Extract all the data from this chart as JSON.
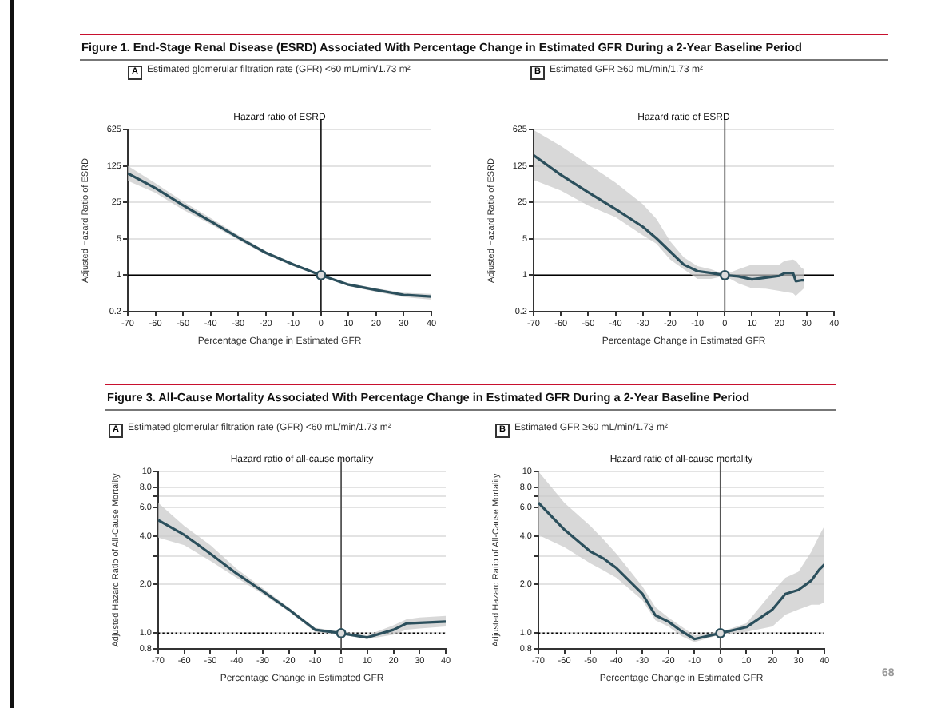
{
  "chart_data": [
    {
      "type": "line",
      "title": "Hazard ratio of ESRD",
      "subtitle": "Estimated glomerular filtration rate (GFR) <60 mL/min/1.73 m²",
      "xlabel": "Percentage Change in Estimated GFR",
      "ylabel": "Adjusted Hazard Ratio of ESRD",
      "annotations": [
        "Figure 1. End-Stage Renal Disease (ESRD) Associated With Percentage Change in Estimated GFR During a 2-Year Baseline Period",
        "A"
      ],
      "log": "y",
      "grid": "y",
      "legend": false,
      "xlim": [
        -70,
        40
      ],
      "xticks": [
        -70,
        -60,
        -50,
        -40,
        -30,
        -20,
        -10,
        0,
        10,
        20,
        30,
        40
      ],
      "ylim": [
        0.2,
        625
      ],
      "yticks": [
        0.2,
        1,
        5,
        25,
        125,
        625
      ],
      "ref_lines": [
        {
          "axis": "y",
          "value": 1,
          "color": "#000000",
          "line_style": "solid"
        },
        {
          "axis": "x",
          "value": 0,
          "color": "#222222",
          "line_style": "solid"
        }
      ],
      "series": [
        {
          "color": "#2b4f5c",
          "x": [
            -70,
            -60,
            -50,
            -40,
            -30,
            -20,
            -10,
            0,
            10,
            20,
            30,
            40
          ],
          "values": [
            90,
            47,
            22,
            10.8,
            5.3,
            2.7,
            1.6,
            1,
            0.66,
            0.52,
            0.42,
            0.39
          ],
          "lower": [
            65,
            38,
            18,
            9.5,
            4.8,
            2.5,
            1.5,
            0.97,
            0.62,
            0.48,
            0.38,
            0.34
          ],
          "upper": [
            125,
            58,
            26,
            12.5,
            5.9,
            2.9,
            1.7,
            1.03,
            0.7,
            0.56,
            0.46,
            0.44
          ]
        },
        {
          "type": "scatter",
          "marker": "circle",
          "color": "#2b4f5c",
          "x": [
            0
          ],
          "values": [
            1
          ]
        }
      ]
    },
    {
      "type": "line",
      "title": "Hazard ratio of ESRD",
      "subtitle": "Estimated GFR ≥60 mL/min/1.73 m²",
      "xlabel": "Percentage Change in Estimated GFR",
      "ylabel": "Adjusted Hazard Ratio of ESRD",
      "annotations": [
        "B"
      ],
      "log": "y",
      "grid": "y",
      "legend": false,
      "xlim": [
        -70,
        40
      ],
      "xticks": [
        -70,
        -60,
        -50,
        -40,
        -30,
        -20,
        -10,
        0,
        10,
        20,
        30,
        40
      ],
      "ylim": [
        0.2,
        625
      ],
      "yticks": [
        0.2,
        1,
        5,
        25,
        125,
        625
      ],
      "ref_lines": [
        {
          "axis": "y",
          "value": 1,
          "color": "#000000",
          "line_style": "solid"
        },
        {
          "axis": "x",
          "value": 0,
          "color": "#555555",
          "line_style": "solid"
        }
      ],
      "series": [
        {
          "color": "#2b4f5c",
          "x": [
            -70,
            -60,
            -50,
            -40,
            -30,
            -25,
            -20,
            -15,
            -10,
            -5,
            0,
            5,
            10,
            15,
            20,
            22,
            25,
            26,
            28,
            29
          ],
          "values": [
            200,
            84,
            39,
            18.5,
            8.5,
            5.1,
            2.85,
            1.6,
            1.2,
            1.1,
            1,
            0.95,
            0.83,
            0.9,
            0.97,
            1.1,
            1.1,
            0.77,
            0.8,
            0.8
          ],
          "lower": [
            67,
            42,
            21.7,
            13,
            5.8,
            4,
            2,
            1.3,
            0.85,
            0.85,
            0.97,
            0.7,
            0.56,
            0.55,
            0.5,
            0.48,
            0.45,
            0.4,
            0.5,
            0.56
          ],
          "upper": [
            610,
            300,
            133,
            60,
            23,
            12,
            4.5,
            2.2,
            1.5,
            1.3,
            1.03,
            1.3,
            1.6,
            1.6,
            1.6,
            1.9,
            2,
            1.9,
            1.4,
            1.3
          ]
        },
        {
          "type": "scatter",
          "marker": "circle",
          "color": "#2b4f5c",
          "x": [
            0
          ],
          "values": [
            1
          ]
        }
      ]
    },
    {
      "type": "line",
      "title": "Hazard ratio of all-cause mortality",
      "subtitle": "Estimated glomerular filtration rate (GFR) <60 mL/min/1.73 m²",
      "xlabel": "Percentage Change in Estimated GFR",
      "ylabel": "Adjusted Hazard Ratio of All-Cause Mortality",
      "annotations": [
        "Figure 3. All-Cause Mortality Associated With Percentage Change in Estimated GFR During a 2-Year Baseline Period",
        "A"
      ],
      "log": "y",
      "grid": "y",
      "legend": false,
      "xlim": [
        -70,
        40
      ],
      "xticks": [
        -70,
        -60,
        -50,
        -40,
        -30,
        -20,
        -10,
        0,
        10,
        20,
        30,
        40
      ],
      "ylim": [
        0.8,
        10
      ],
      "yticks": [
        {
          "value": 0.8,
          "label": "0.8"
        },
        {
          "value": 1,
          "label": "1.0"
        },
        {
          "value": 2,
          "label": "2.0"
        },
        {
          "value": 3,
          "label": null
        },
        {
          "value": 4,
          "label": "4.0"
        },
        {
          "value": 6,
          "label": "6.0"
        },
        {
          "value": 7,
          "label": null
        },
        {
          "value": 8,
          "label": "8.0"
        },
        10
      ],
      "ref_lines": [
        {
          "axis": "y",
          "value": 1,
          "color": "#000000",
          "line_style": "dotted"
        },
        {
          "axis": "x",
          "value": 0,
          "color": "#555555",
          "line_style": "solid"
        }
      ],
      "series": [
        {
          "color": "#2b4f5c",
          "x": [
            -70,
            -60,
            -50,
            -40,
            -30,
            -20,
            -10,
            0,
            10,
            20,
            25,
            30,
            40
          ],
          "values": [
            5,
            4.05,
            3.1,
            2.34,
            1.82,
            1.4,
            1.05,
            1,
            0.94,
            1.05,
            1.15,
            1.16,
            1.18
          ],
          "lower": [
            3.9,
            3.5,
            2.8,
            2.2,
            1.75,
            1.36,
            1.02,
            0.98,
            0.92,
            0.98,
            1.05,
            1.07,
            1.1
          ],
          "upper": [
            6.4,
            4.6,
            3.5,
            2.5,
            1.9,
            1.44,
            1.08,
            1.02,
            0.97,
            1.12,
            1.22,
            1.25,
            1.28
          ]
        },
        {
          "type": "scatter",
          "marker": "circle",
          "color": "#2b4f5c",
          "x": [
            0
          ],
          "values": [
            1
          ]
        }
      ]
    },
    {
      "type": "line",
      "title": "Hazard ratio of all-cause mortality",
      "subtitle": "Estimated GFR ≥60 mL/min/1.73 m²",
      "xlabel": "Percentage Change in Estimated GFR",
      "ylabel": "Adjusted Hazard Ratio of All-Cause Mortality",
      "annotations": [
        "B",
        "68"
      ],
      "log": "y",
      "grid": "y",
      "legend": false,
      "xlim": [
        -70,
        40
      ],
      "xticks": [
        -70,
        -60,
        -50,
        -40,
        -30,
        -20,
        -10,
        0,
        10,
        20,
        30,
        40
      ],
      "ylim": [
        0.8,
        10
      ],
      "yticks": [
        {
          "value": 0.8,
          "label": "0.8"
        },
        {
          "value": 1,
          "label": "1.0"
        },
        {
          "value": 2,
          "label": "2.0"
        },
        {
          "value": 3,
          "label": null
        },
        {
          "value": 4,
          "label": "4.0"
        },
        {
          "value": 6,
          "label": "6.0"
        },
        {
          "value": 7,
          "label": null
        },
        {
          "value": 8,
          "label": "8.0"
        },
        10
      ],
      "ref_lines": [
        {
          "axis": "y",
          "value": 1,
          "color": "#000000",
          "line_style": "dotted"
        },
        {
          "axis": "x",
          "value": 0,
          "color": "#555555",
          "line_style": "solid"
        }
      ],
      "series": [
        {
          "color": "#2b4f5c",
          "x": [
            -70,
            -60,
            -50,
            -45,
            -40,
            -30,
            -25,
            -20,
            -15,
            -10,
            0,
            10,
            20,
            25,
            30,
            35,
            38,
            40
          ],
          "values": [
            6.4,
            4.37,
            3.2,
            2.9,
            2.53,
            1.75,
            1.29,
            1.18,
            1.03,
            0.92,
            1,
            1.09,
            1.4,
            1.75,
            1.85,
            2.12,
            2.47,
            2.66
          ],
          "lower": [
            4.05,
            3.4,
            2.7,
            2.45,
            2.2,
            1.6,
            1.2,
            1.1,
            0.96,
            0.88,
            0.98,
            1.02,
            1.1,
            1.3,
            1.4,
            1.5,
            1.5,
            1.55
          ],
          "upper": [
            10,
            6.4,
            4.6,
            3.8,
            3.1,
            1.95,
            1.45,
            1.25,
            1.1,
            0.97,
            1.02,
            1.15,
            1.8,
            2.2,
            2.4,
            3.2,
            4,
            4.6
          ]
        },
        {
          "type": "scatter",
          "marker": "circle",
          "color": "#2b4f5c",
          "x": [
            0
          ],
          "values": [
            1
          ]
        }
      ]
    }
  ]
}
